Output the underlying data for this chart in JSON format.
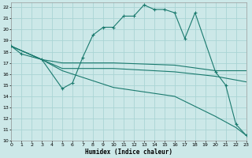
{
  "xlabel": "Humidex (Indice chaleur)",
  "background_color": "#cce8e8",
  "grid_color": "#aad4d4",
  "line_color": "#1a7a6e",
  "xlim": [
    0,
    23
  ],
  "ylim": [
    10,
    22.4
  ],
  "xticks": [
    0,
    1,
    2,
    3,
    4,
    5,
    6,
    7,
    8,
    9,
    10,
    11,
    12,
    13,
    14,
    15,
    16,
    17,
    18,
    19,
    20,
    21,
    22,
    23
  ],
  "yticks": [
    10,
    11,
    12,
    13,
    14,
    15,
    16,
    17,
    18,
    19,
    20,
    21,
    22
  ],
  "curves": [
    {
      "x": [
        0,
        1,
        3,
        5,
        6,
        7,
        8,
        9,
        10,
        11,
        12,
        13,
        14,
        15,
        16,
        17,
        18,
        20,
        21,
        22,
        23
      ],
      "y": [
        18.5,
        17.8,
        17.3,
        14.7,
        15.2,
        17.5,
        19.5,
        20.2,
        20.2,
        21.2,
        21.2,
        22.2,
        21.8,
        21.8,
        21.5,
        19.2,
        21.5,
        16.2,
        15.0,
        11.5,
        10.5
      ],
      "marker": "+",
      "markersize": 3.0
    },
    {
      "x": [
        0,
        3,
        5,
        10,
        16,
        20,
        23
      ],
      "y": [
        18.5,
        17.3,
        17.0,
        17.0,
        16.8,
        16.3,
        16.3
      ],
      "marker": null,
      "markersize": 0
    },
    {
      "x": [
        0,
        3,
        5,
        10,
        16,
        20,
        23
      ],
      "y": [
        18.5,
        17.3,
        16.5,
        16.5,
        16.2,
        15.8,
        15.3
      ],
      "marker": null,
      "markersize": 0
    },
    {
      "x": [
        0,
        3,
        5,
        10,
        16,
        20,
        21,
        22,
        23
      ],
      "y": [
        18.5,
        17.3,
        16.3,
        14.8,
        14.0,
        12.2,
        11.7,
        11.2,
        10.5
      ],
      "marker": null,
      "markersize": 0
    }
  ]
}
